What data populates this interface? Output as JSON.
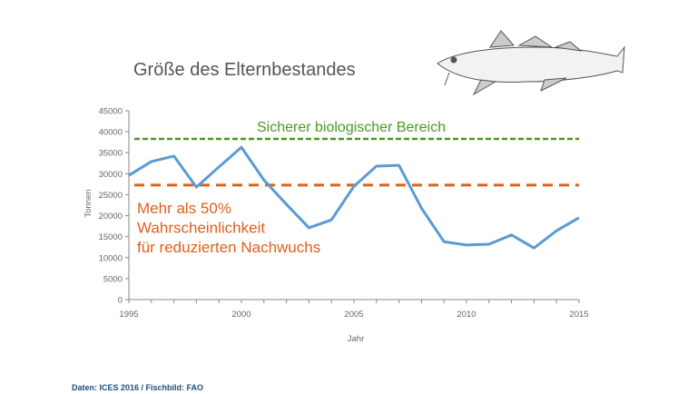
{
  "chart_data": {
    "type": "line",
    "title": "Größe des Elternbestandes",
    "xlabel": "Jahr",
    "ylabel": "Tonnen",
    "xlim": [
      1995,
      2015
    ],
    "ylim": [
      0,
      45000
    ],
    "x_ticks": [
      "1995",
      "2000",
      "2005",
      "2010",
      "2015"
    ],
    "y_ticks": [
      "0",
      "5000",
      "10000",
      "15000",
      "20000",
      "25000",
      "30000",
      "35000",
      "40000",
      "45000"
    ],
    "series": [
      {
        "name": "Elternbestand",
        "color": "#5b9bd5",
        "x": [
          1995,
          1996,
          1997,
          1998,
          1999,
          2000,
          2001,
          2002,
          2003,
          2004,
          2005,
          2006,
          2007,
          2008,
          2009,
          2010,
          2011,
          2012,
          2013,
          2014,
          2015
        ],
        "values": [
          29600,
          32900,
          34200,
          26800,
          31600,
          36300,
          28500,
          22700,
          17100,
          19000,
          27000,
          31800,
          32000,
          21800,
          13800,
          13000,
          13200,
          15400,
          12300,
          16400,
          19500
        ]
      }
    ],
    "reference_lines": [
      {
        "name": "Sicherer biologischer Bereich",
        "value": 38300,
        "color": "#4a9a1f"
      },
      {
        "name": "Mehr als 50% Wahrscheinlichkeit für reduzierten Nachwuchs",
        "value": 27300,
        "color": "#e0601a"
      }
    ],
    "annotations": {
      "green": "Sicherer biologischer Bereich",
      "orange": [
        "Mehr als 50%",
        "Wahrscheinlichkeit",
        "für reduzierten Nachwuchs"
      ]
    }
  },
  "source": "Daten: ICES 2016 / Fischbild: FAO"
}
